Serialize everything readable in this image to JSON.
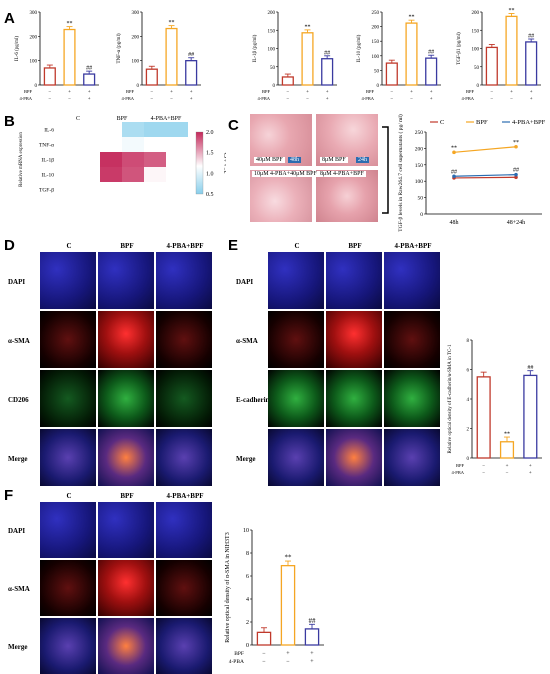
{
  "panel_letters": [
    "A",
    "B",
    "C",
    "D",
    "E",
    "F"
  ],
  "colors": {
    "control": "#c0392b",
    "bpf": "#f5a623",
    "pba": "#3a3aa0",
    "dapi": "#1a1a9a",
    "sma": "#d01818",
    "cd206": "#2aa02a",
    "ecad": "#2aa070"
  },
  "treat_labels": {
    "bpf": "BPF",
    "pba": "4-PBA"
  },
  "sign": {
    "minus": "−",
    "plus": "+"
  },
  "chart_data": [
    {
      "type": "bar",
      "ylabel": "IL-6 (pg/ml)",
      "ylim": [
        0,
        300
      ],
      "ticks": [
        "0",
        "100",
        "200",
        "300"
      ],
      "categories": [
        "C",
        "BPF",
        "4-PBA+BPF"
      ],
      "values": [
        70,
        228,
        45
      ],
      "sig": [
        "",
        "**",
        "##"
      ]
    },
    {
      "type": "bar",
      "ylabel": "TNF-α (pg/ml)",
      "ylim": [
        0,
        300
      ],
      "ticks": [
        "0",
        "100",
        "200",
        "300"
      ],
      "categories": [
        "C",
        "BPF",
        "4-PBA+BPF"
      ],
      "values": [
        65,
        232,
        100
      ],
      "sig": [
        "",
        "**",
        "##"
      ]
    },
    {
      "type": "bar",
      "ylabel": "IL-1β (pg/ml)",
      "ylim": [
        0,
        200
      ],
      "ticks": [
        "0",
        "50",
        "100",
        "150",
        "200"
      ],
      "categories": [
        "C",
        "BPF",
        "4-PBA+BPF"
      ],
      "values": [
        22,
        143,
        72
      ],
      "sig": [
        "",
        "**",
        "##"
      ]
    },
    {
      "type": "bar",
      "ylabel": "IL-10 (pg/ml)",
      "ylim": [
        0,
        250
      ],
      "ticks": [
        "0",
        "50",
        "100",
        "150",
        "200",
        "250"
      ],
      "categories": [
        "C",
        "BPF",
        "4-PBA+BPF"
      ],
      "values": [
        75,
        212,
        92
      ],
      "sig": [
        "",
        "**",
        "##"
      ]
    },
    {
      "type": "bar",
      "ylabel": "TGF-β1 (pg/ml)",
      "ylim": [
        0,
        200
      ],
      "ticks": [
        "0",
        "50",
        "100",
        "150",
        "200"
      ],
      "categories": [
        "C",
        "BPF",
        "4-PBA+BPF"
      ],
      "values": [
        103,
        188,
        118
      ],
      "sig": [
        "",
        "**",
        "##"
      ]
    },
    {
      "type": "heatmap",
      "ylabel": "Relative mRNA expression",
      "columns": [
        "C",
        "BPF",
        "4-PBA+BPF"
      ],
      "rows": [
        "IL-6",
        "TNF-α",
        "IL-1β",
        "IL-10",
        "TGF-β"
      ],
      "values": [
        [
          1.0,
          1.0,
          1.0,
          0.65,
          0.6,
          0.6
        ],
        [
          1.0,
          1.0,
          1.0,
          0.95,
          1.0,
          1.0
        ],
        [
          1.0,
          1.0,
          2.15,
          2.0,
          1.9,
          1.0
        ],
        [
          1.0,
          1.0,
          2.1,
          1.95,
          1.05,
          1.0
        ],
        [
          1.0,
          1.0,
          1.0,
          1.0,
          1.0,
          1.0
        ]
      ],
      "colorbar_ticks": [
        "2.0",
        "1.5",
        "1.0",
        "0.5"
      ],
      "colorbar_label": "2⁻△△Ct"
    },
    {
      "type": "line",
      "series": [
        {
          "name": "C",
          "values": [
            110,
            112
          ]
        },
        {
          "name": "BPF",
          "values": [
            188,
            205
          ]
        },
        {
          "name": "4-PBA+BPF",
          "values": [
            115,
            120
          ]
        }
      ],
      "x": [
        "48h",
        "48+24h"
      ],
      "ylabel": "TGF-β levels in Raw264.7 cell supernatants ( pg/ ml)",
      "ylim": [
        0,
        250
      ],
      "ticks": [
        "0",
        "50",
        "100",
        "150",
        "200",
        "250"
      ],
      "sig_bpf": [
        "**",
        "**"
      ],
      "sig_pba": [
        "##",
        "##"
      ]
    },
    {
      "type": "bar",
      "ylabel": "Relative optical density of E-cadherin/α-SMA in TC-1",
      "ylim": [
        0,
        8
      ],
      "ticks": [
        "0",
        "2",
        "4",
        "6",
        "8"
      ],
      "categories": [
        "C",
        "BPF",
        "4-PBA+BPF"
      ],
      "values": [
        5.5,
        1.1,
        5.6
      ],
      "sig": [
        "",
        "**",
        "##"
      ]
    },
    {
      "type": "bar",
      "ylabel": "Relative optical density of α-SMA in NIH3T3",
      "ylim": [
        0,
        10
      ],
      "ticks": [
        "0",
        "2",
        "4",
        "6",
        "8",
        "10"
      ],
      "categories": [
        "C",
        "BPF",
        "4-PBA+BPF"
      ],
      "values": [
        1.1,
        6.9,
        1.4
      ],
      "sig": [
        "",
        "**",
        "##"
      ]
    }
  ],
  "micro_c": {
    "captions": [
      "40μM BPF",
      "8μM BPF",
      "10μM 4-PBA+40μM BPF",
      "8μM 4-PBA+BPF"
    ],
    "badges": [
      "48h",
      "24h"
    ]
  },
  "panel_d": {
    "cols": [
      "C",
      "BPF",
      "4-PBA+BPF"
    ],
    "rows": [
      "DAPI",
      "α-SMA",
      "CD206",
      "Merge"
    ]
  },
  "panel_e": {
    "cols": [
      "C",
      "BPF",
      "4-PBA+BPF"
    ],
    "rows": [
      "DAPI",
      "α-SMA",
      "E-cadherin",
      "Merge"
    ]
  },
  "panel_f": {
    "cols": [
      "C",
      "BPF",
      "4-PBA+BPF"
    ],
    "rows": [
      "DAPI",
      "α-SMA",
      "Merge"
    ]
  }
}
